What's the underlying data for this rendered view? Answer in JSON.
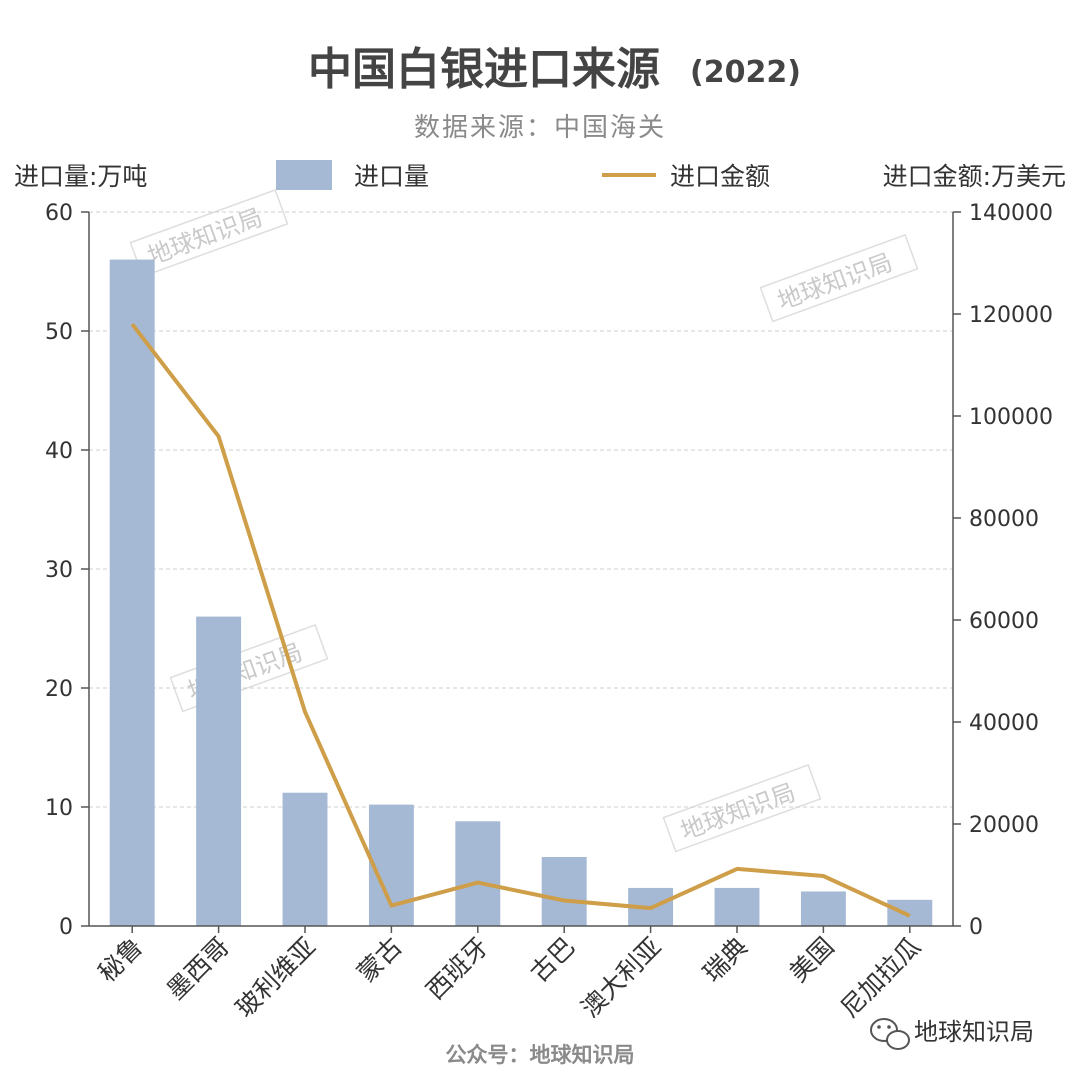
{
  "chart_data": {
    "type": "bar",
    "title": "中国白银进口来源",
    "title_year": "(2022)",
    "subtitle": "数据来源：中国海关",
    "left_axis_label": "进口量:万吨",
    "right_axis_label": "进口金额:万美元",
    "categories": [
      "秘鲁",
      "墨西哥",
      "玻利维亚",
      "蒙古",
      "西班牙",
      "古巴",
      "澳大利亚",
      "瑞典",
      "美国",
      "尼加拉瓜"
    ],
    "series": [
      {
        "name": "进口量",
        "type": "bar",
        "axis": "left",
        "color": "#a5b9d4",
        "values": [
          56,
          26,
          11.2,
          10.2,
          8.8,
          5.8,
          3.2,
          3.2,
          2.9,
          2.2
        ]
      },
      {
        "name": "进口金额",
        "type": "line",
        "axis": "right",
        "color": "#cf9e48",
        "values": [
          118000,
          96000,
          42000,
          4000,
          8500,
          5000,
          3500,
          11200,
          9800,
          2000
        ]
      }
    ],
    "ylim_left": [
      0,
      60
    ],
    "yticks_left": [
      "0",
      "10",
      "20",
      "30",
      "40",
      "50",
      "60"
    ],
    "ylim_right": [
      0,
      140000
    ],
    "yticks_right": [
      "0",
      "20000",
      "40000",
      "60000",
      "80000",
      "100000",
      "120000",
      "140000"
    ],
    "grid": true,
    "legend": "top"
  },
  "watermark": "地球知识局",
  "footer": "公众号：地球知识局",
  "brand": "地球知识局",
  "brand_icon": "wechat-icon"
}
